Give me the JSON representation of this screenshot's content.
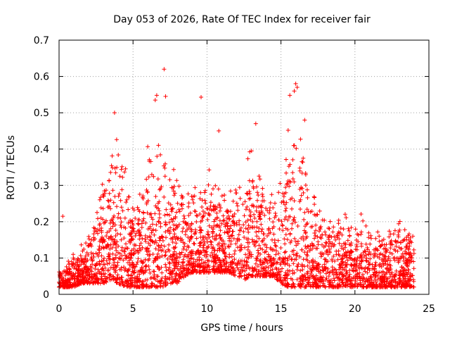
{
  "chart_data": {
    "type": "scatter",
    "title": "Day 053 of 2026, Rate Of TEC Index for receiver fair",
    "xlabel": "GPS time / hours",
    "ylabel": "ROTI / TECUs",
    "xlim": [
      0,
      25
    ],
    "ylim": [
      0,
      0.7
    ],
    "x_ticks": [
      "0",
      "5",
      "10",
      "15",
      "20",
      "25"
    ],
    "y_ticks": [
      "0",
      "0.1",
      "0.2",
      "0.3",
      "0.4",
      "0.5",
      "0.6",
      "0.7"
    ],
    "grid": true,
    "marker": "+",
    "color": "#ff0000",
    "envelope_hours": [
      0,
      0.5,
      1,
      1.5,
      2,
      2.5,
      3,
      3.5,
      4,
      4.5,
      5,
      5.5,
      6,
      6.5,
      7,
      7.5,
      8,
      8.5,
      9,
      9.5,
      10,
      10.5,
      11,
      11.5,
      12,
      12.5,
      13,
      13.5,
      14,
      14.5,
      15,
      15.5,
      16,
      16.5,
      17,
      17.5,
      18,
      18.5,
      19,
      19.5,
      20,
      20.5,
      21,
      21.5,
      22,
      22.5,
      23,
      23.5,
      24
    ],
    "envelope_low": [
      0.02,
      0.02,
      0.02,
      0.03,
      0.03,
      0.03,
      0.03,
      0.04,
      0.03,
      0.02,
      0.02,
      0.02,
      0.02,
      0.02,
      0.02,
      0.03,
      0.03,
      0.05,
      0.06,
      0.06,
      0.06,
      0.06,
      0.06,
      0.06,
      0.05,
      0.04,
      0.05,
      0.05,
      0.05,
      0.05,
      0.03,
      0.02,
      0.02,
      0.02,
      0.02,
      0.02,
      0.02,
      0.02,
      0.02,
      0.02,
      0.02,
      0.02,
      0.02,
      0.02,
      0.02,
      0.02,
      0.02,
      0.02,
      0.02
    ],
    "envelope_high": [
      0.08,
      0.09,
      0.12,
      0.14,
      0.2,
      0.26,
      0.38,
      0.4,
      0.45,
      0.38,
      0.3,
      0.32,
      0.42,
      0.45,
      0.42,
      0.4,
      0.36,
      0.3,
      0.3,
      0.32,
      0.33,
      0.4,
      0.32,
      0.28,
      0.36,
      0.34,
      0.45,
      0.4,
      0.3,
      0.32,
      0.35,
      0.5,
      0.55,
      0.42,
      0.3,
      0.28,
      0.26,
      0.22,
      0.24,
      0.22,
      0.2,
      0.25,
      0.2,
      0.18,
      0.2,
      0.2,
      0.22,
      0.22,
      0.18
    ],
    "outliers": [
      {
        "x": 0.25,
        "y": 0.215
      },
      {
        "x": 3.75,
        "y": 0.5
      },
      {
        "x": 6.5,
        "y": 0.535
      },
      {
        "x": 6.6,
        "y": 0.548
      },
      {
        "x": 7.1,
        "y": 0.62
      },
      {
        "x": 7.2,
        "y": 0.545
      },
      {
        "x": 9.6,
        "y": 0.543
      },
      {
        "x": 10.8,
        "y": 0.45
      },
      {
        "x": 13.3,
        "y": 0.47
      },
      {
        "x": 15.6,
        "y": 0.548
      },
      {
        "x": 15.9,
        "y": 0.56
      },
      {
        "x": 16.0,
        "y": 0.58
      },
      {
        "x": 16.1,
        "y": 0.57
      },
      {
        "x": 16.6,
        "y": 0.48
      }
    ]
  }
}
